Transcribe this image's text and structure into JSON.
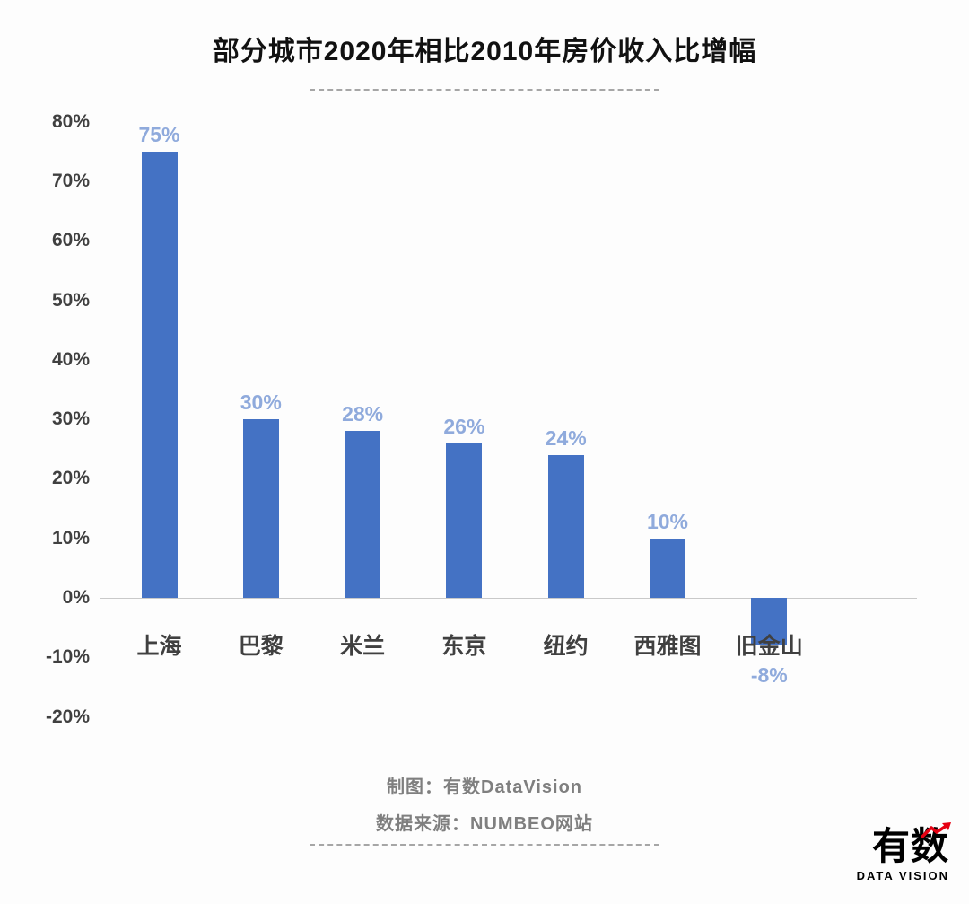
{
  "title": "部分城市2020年相比2010年房价收入比增幅",
  "chart_data": {
    "type": "bar",
    "title": "部分城市2020年相比2010年房价收入比增幅",
    "categories": [
      "上海",
      "巴黎",
      "米兰",
      "东京",
      "纽约",
      "西雅图",
      "旧金山"
    ],
    "values": [
      75,
      30,
      28,
      26,
      24,
      10,
      -8
    ],
    "data_labels": [
      "75%",
      "30%",
      "28%",
      "26%",
      "24%",
      "10%",
      "-8%"
    ],
    "ylim": [
      -20,
      80
    ],
    "yticks": [
      80,
      70,
      60,
      50,
      40,
      30,
      20,
      10,
      0,
      -10,
      -20
    ],
    "ytick_suffix": "%",
    "grid": false,
    "legend": false,
    "bar_color": "#4472c4",
    "data_label_color": "#8faadc",
    "category_label_color": "#404040",
    "axis_line_color": "#c9c9c9"
  },
  "footer": {
    "credit": "制图：有数DataVision",
    "source": "数据来源：NUMBEO网站"
  },
  "logo": {
    "wordmark": "有数",
    "subtitle": "DATA VISION",
    "accent_color": "#e60012"
  }
}
